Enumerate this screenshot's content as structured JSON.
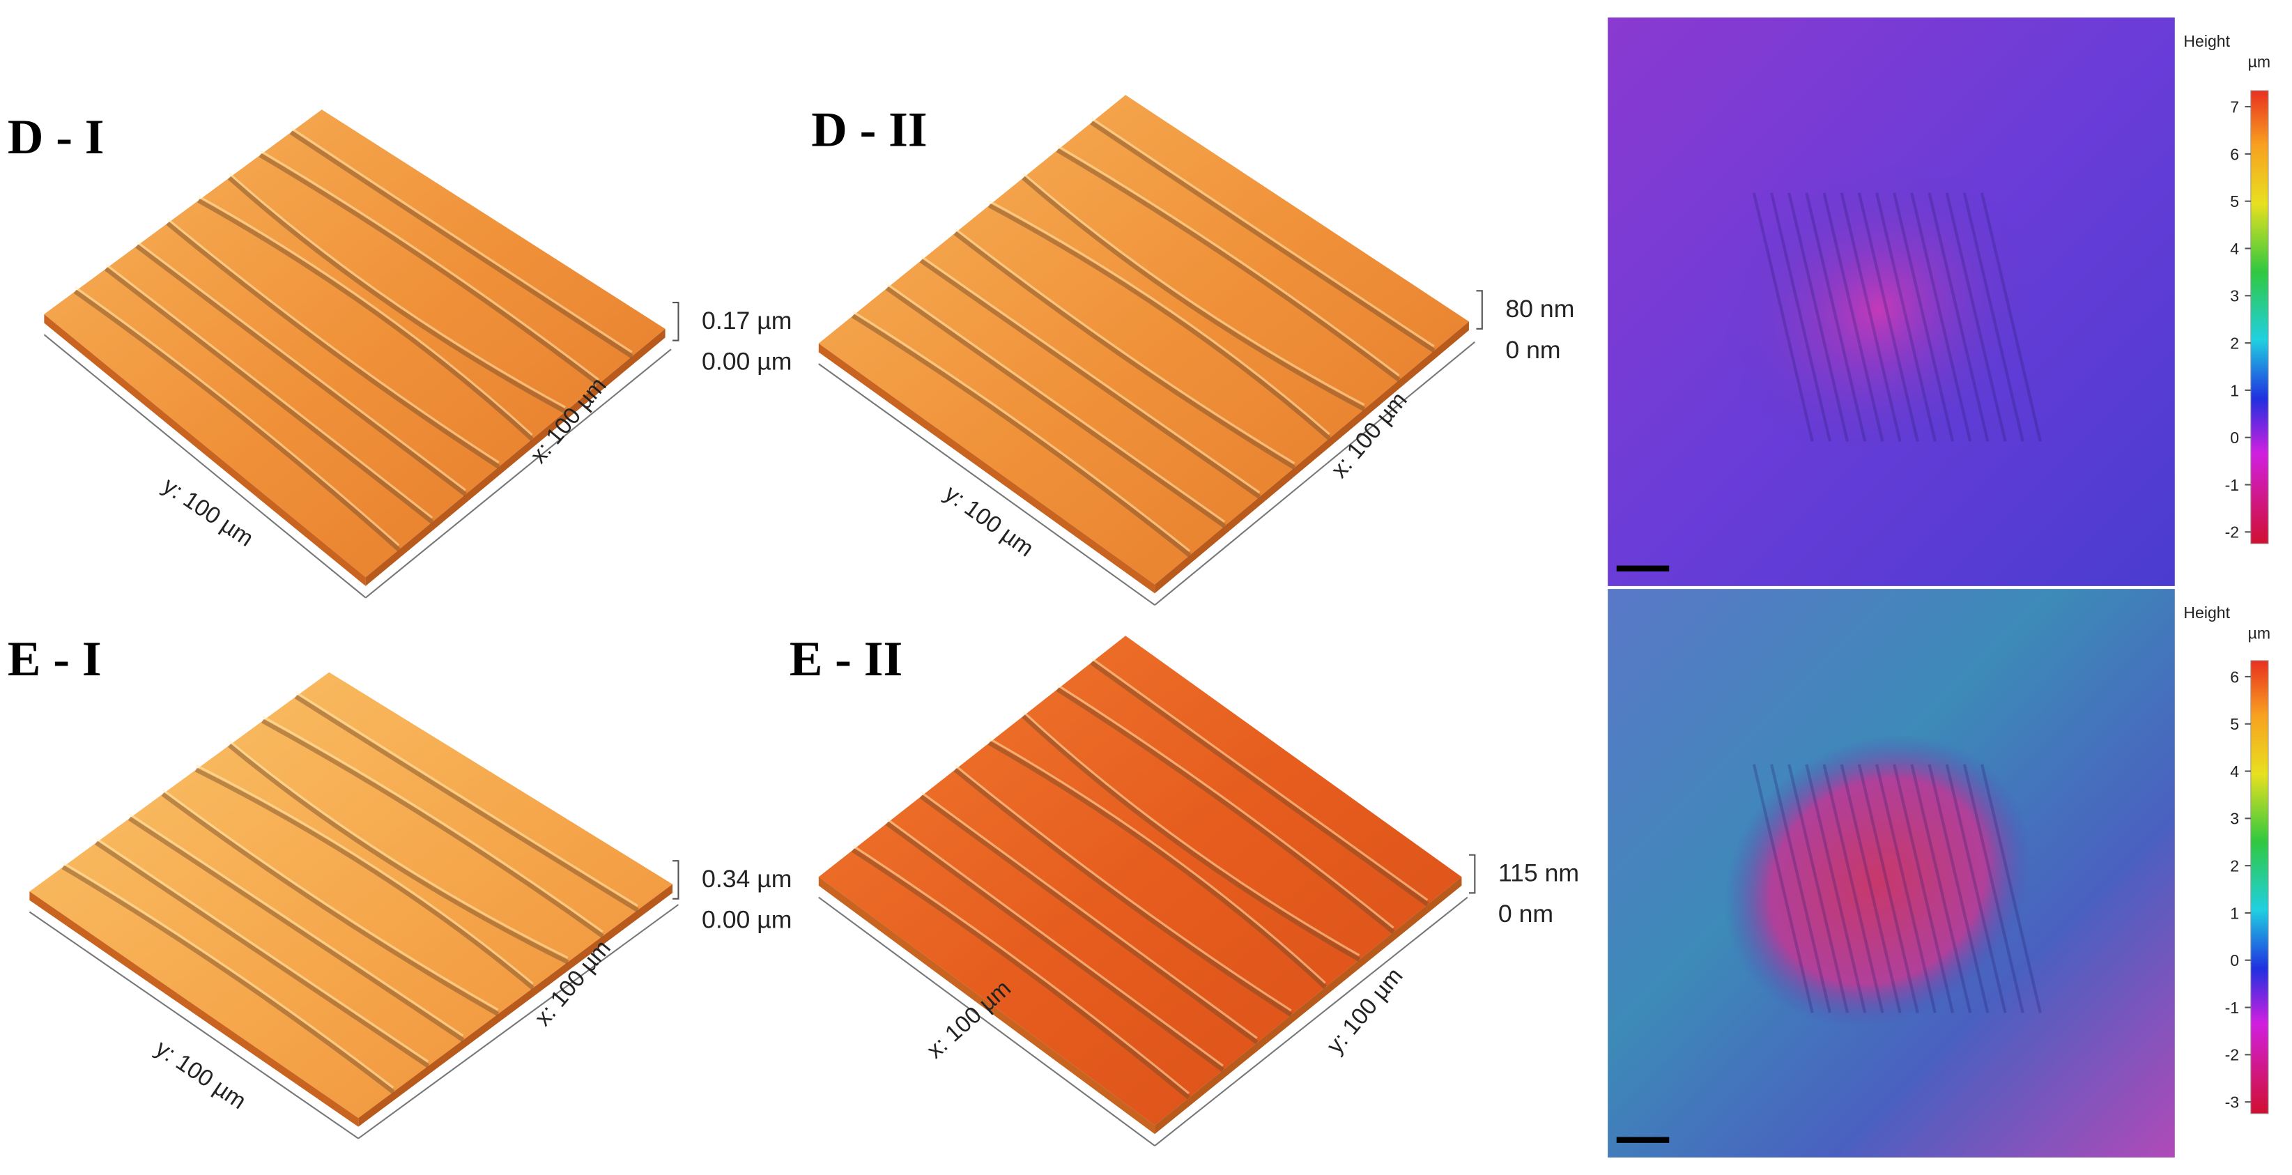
{
  "panels": [
    {
      "label": "D - I",
      "axis_a": "y: 100 µm",
      "axis_b": "x: 100 µm",
      "z_top": "0.17 µm",
      "z_bottom": "0.00 µm"
    },
    {
      "label": "D - II",
      "axis_a": "y: 100 µm",
      "axis_b": "x: 100 µm",
      "z_top": "80 nm",
      "z_bottom": "0 nm"
    },
    {
      "label": "E - I",
      "axis_a": "y: 100 µm",
      "axis_b": "x: 100 µm",
      "z_top": "0.34 µm",
      "z_bottom": "0.00 µm"
    },
    {
      "label": "E - II",
      "axis_a": "x: 100 µm",
      "axis_b": "y: 100 µm",
      "z_top": "115 nm",
      "z_bottom": "0 nm"
    }
  ],
  "height_maps": [
    {
      "title": "Height",
      "unit": "µm",
      "ticks": [
        7,
        6,
        5,
        4,
        3,
        2,
        1,
        0,
        -1,
        -2
      ]
    },
    {
      "title": "Height",
      "unit": "µm",
      "ticks": [
        6,
        5,
        4,
        3,
        2,
        1,
        0,
        -1,
        -2,
        -3
      ]
    }
  ]
}
